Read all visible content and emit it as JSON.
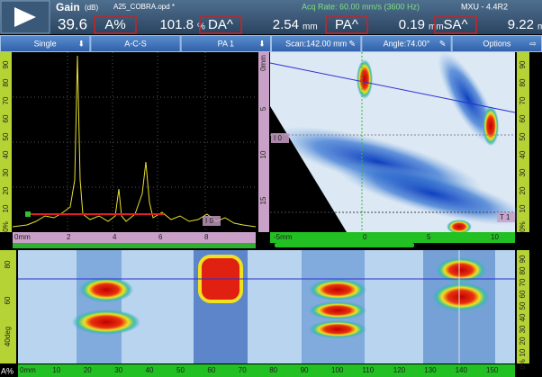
{
  "header": {
    "gain_label": "Gain",
    "gain_unit": "(dB)",
    "gain": "39.6",
    "file": "A25_COBRA.opd *",
    "acq_rate": "Acq Rate: 60.00 mm/s (3600 Hz)",
    "version": "MXU - 4.4R2",
    "readings": [
      {
        "name": "A%",
        "value": "101.8",
        "unit": "%"
      },
      {
        "name": "DA^",
        "value": "2.54",
        "unit": "mm"
      },
      {
        "name": "PA^",
        "value": "0.19",
        "unit": "mm"
      },
      {
        "name": "SA^",
        "value": "9.22",
        "unit": "mm"
      }
    ]
  },
  "toolbar": [
    "Single",
    "A-C-S",
    "PA 1",
    "Scan:142.00 mm",
    "Angle:74.00°",
    "Options"
  ],
  "ascan": {
    "amplitude_ticks": [
      "90",
      "80",
      "70",
      "60",
      "50",
      "40",
      "30",
      "20",
      "10",
      "0%"
    ],
    "depth_ticks": [
      "0mm",
      "2",
      "4",
      "6",
      "8"
    ],
    "cursor": "I 0"
  },
  "sscan": {
    "depth_ticks": [
      "0mm",
      "5",
      "10",
      "15"
    ],
    "amplitude_ticks": [
      "90",
      "80",
      "70",
      "60",
      "50",
      "40",
      "30",
      "20",
      "10",
      "0%"
    ],
    "index_ticks": [
      "-5mm",
      "0",
      "5",
      "10"
    ],
    "cursor_left": "I 0",
    "cursor_right": "T 1"
  },
  "cscan": {
    "angle_ticks": [
      "80",
      "60",
      "40deg"
    ],
    "amplitude_ticks": [
      "90",
      "80",
      "70",
      "60",
      "50",
      "40",
      "30",
      "20",
      "10",
      "0%"
    ],
    "scan_ticks": [
      "0mm",
      "10",
      "20",
      "30",
      "40",
      "50",
      "60",
      "70",
      "80",
      "90",
      "100",
      "110",
      "120",
      "130",
      "140",
      "150"
    ]
  },
  "footer": {
    "mode": "A%"
  }
}
